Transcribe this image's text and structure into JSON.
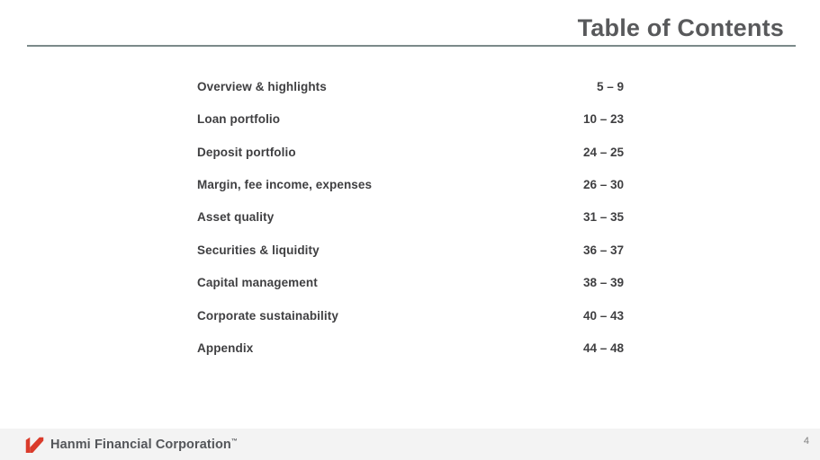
{
  "slide": {
    "title": "Table of Contents",
    "page_number": "4"
  },
  "toc": {
    "entries": [
      {
        "label": "Overview & highlights",
        "pages": "5 – 9"
      },
      {
        "label": "Loan portfolio",
        "pages": "10 – 23"
      },
      {
        "label": "Deposit portfolio",
        "pages": "24 – 25"
      },
      {
        "label": "Margin, fee income, expenses",
        "pages": "26 – 30"
      },
      {
        "label": "Asset quality",
        "pages": "31 – 35"
      },
      {
        "label": "Securities & liquidity",
        "pages": "36 – 37"
      },
      {
        "label": "Capital management",
        "pages": "38 – 39"
      },
      {
        "label": "Corporate sustainability",
        "pages": "40 – 43"
      },
      {
        "label": "Appendix",
        "pages": "44 – 48"
      }
    ]
  },
  "footer": {
    "brand": "Hanmi Financial Corporation",
    "trademark": "™"
  },
  "colors": {
    "title_text": "#58595b",
    "body_text": "#3f3f41",
    "divider": "#7b8a8a",
    "footer_bg": "#f3f3f3",
    "brand_red": "#da3b2b",
    "page_number": "#808080"
  }
}
